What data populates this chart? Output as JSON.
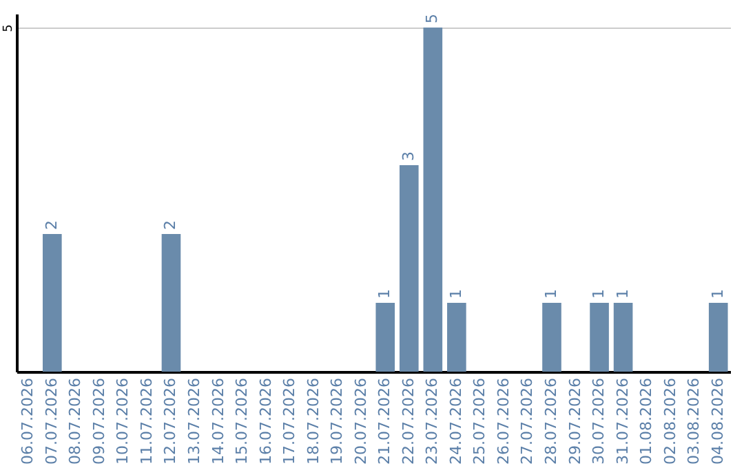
{
  "chart_data": {
    "type": "bar",
    "categories": [
      "06.07.2026",
      "07.07.2026",
      "08.07.2026",
      "09.07.2026",
      "10.07.2026",
      "11.07.2026",
      "12.07.2026",
      "13.07.2026",
      "14.07.2026",
      "15.07.2026",
      "16.07.2026",
      "17.07.2026",
      "18.07.2026",
      "19.07.2026",
      "20.07.2026",
      "21.07.2026",
      "22.07.2026",
      "23.07.2026",
      "24.07.2026",
      "25.07.2026",
      "26.07.2026",
      "27.07.2026",
      "28.07.2026",
      "29.07.2026",
      "30.07.2026",
      "31.07.2026",
      "01.08.2026",
      "02.08.2026",
      "03.08.2026",
      "04.08.2026"
    ],
    "values": [
      0,
      2,
      0,
      0,
      0,
      0,
      2,
      0,
      0,
      0,
      0,
      0,
      0,
      0,
      0,
      1,
      3,
      5,
      1,
      0,
      0,
      0,
      1,
      0,
      1,
      1,
      0,
      0,
      0,
      1
    ],
    "value_labels": [
      null,
      "2",
      null,
      null,
      null,
      null,
      "2",
      null,
      null,
      null,
      null,
      null,
      null,
      null,
      null,
      "1",
      "3",
      "5",
      "1",
      null,
      null,
      null,
      "1",
      null,
      "1",
      "1",
      null,
      null,
      null,
      "1"
    ],
    "color": "#6a8bab",
    "ylim": [
      0,
      5.2
    ],
    "yticks": [
      5
    ],
    "grid": "y"
  }
}
